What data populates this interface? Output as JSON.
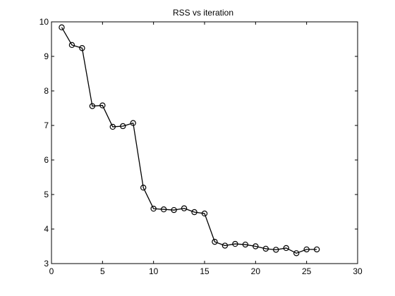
{
  "chart_data": {
    "type": "line",
    "title": "RSS vs iteration",
    "xlabel": "",
    "ylabel": "",
    "xlim": [
      0,
      30
    ],
    "ylim": [
      3,
      10
    ],
    "x_ticks": [
      0,
      5,
      10,
      15,
      20,
      25,
      30
    ],
    "y_ticks": [
      3,
      4,
      5,
      6,
      7,
      8,
      9,
      10
    ],
    "grid": false,
    "marker": "circle",
    "line_color": "#000000",
    "series": [
      {
        "x": [
          1,
          2,
          3,
          4,
          5,
          6,
          7,
          8,
          9,
          10,
          11,
          12,
          13,
          14,
          15,
          16,
          17,
          18,
          19,
          20,
          21,
          22,
          23,
          24,
          25,
          26
        ],
        "values": [
          9.84,
          9.33,
          9.24,
          7.56,
          7.58,
          6.96,
          6.98,
          7.07,
          5.2,
          4.59,
          4.57,
          4.55,
          4.6,
          4.49,
          4.45,
          3.63,
          3.52,
          3.57,
          3.55,
          3.5,
          3.43,
          3.4,
          3.45,
          3.3,
          3.41,
          3.41
        ]
      }
    ]
  }
}
